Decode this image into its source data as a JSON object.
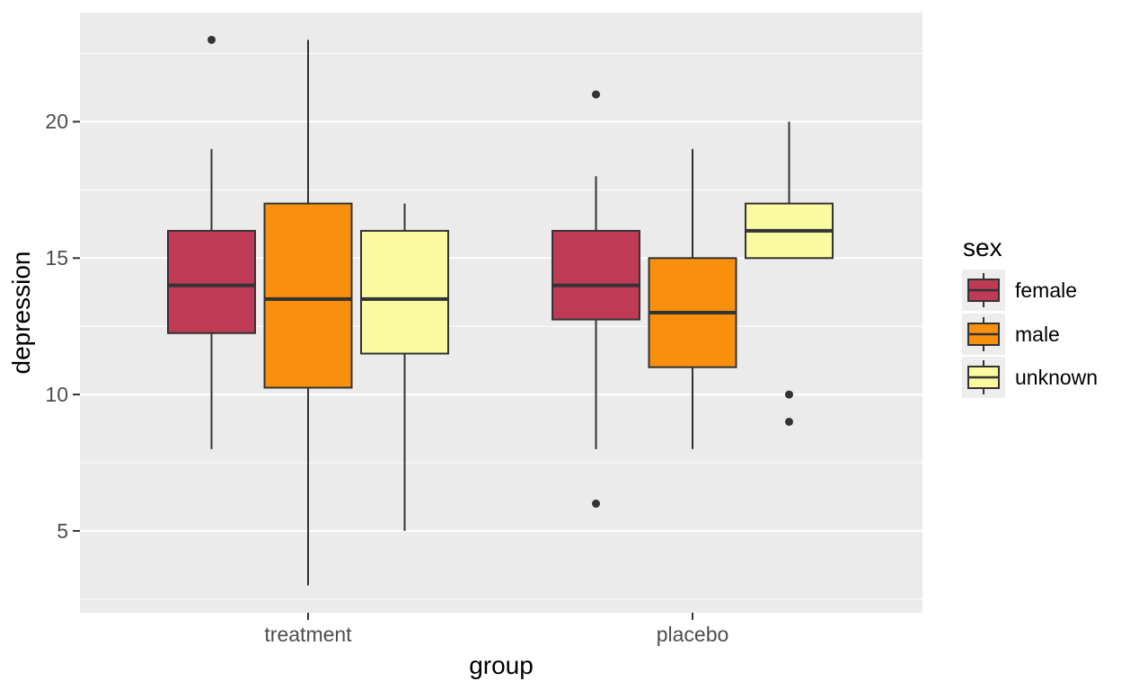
{
  "chart_data": {
    "type": "boxplot",
    "title": "",
    "xlabel": "group",
    "ylabel": "depression",
    "categories": [
      "treatment",
      "placebo"
    ],
    "yticks": [
      5,
      10,
      15,
      20
    ],
    "yticks_minor": [
      2.5,
      7.5,
      12.5,
      17.5,
      22.5
    ],
    "ylim": [
      2,
      24
    ],
    "grid": "white major and minor horizontal gridlines on grey panel",
    "legend": {
      "title": "sex",
      "position": "right",
      "entries": [
        {
          "label": "female",
          "color": "#BE3A55"
        },
        {
          "label": "male",
          "color": "#F8900D"
        },
        {
          "label": "unknown",
          "color": "#FAFAA0"
        }
      ]
    },
    "series": [
      {
        "group": "treatment",
        "sex": "female",
        "whisker_low": 8,
        "q1": 12.25,
        "median": 14,
        "q3": 16,
        "whisker_high": 19,
        "outliers": [
          23
        ]
      },
      {
        "group": "treatment",
        "sex": "male",
        "whisker_low": 3,
        "q1": 10.25,
        "median": 13.5,
        "q3": 17,
        "whisker_high": 23,
        "outliers": []
      },
      {
        "group": "treatment",
        "sex": "unknown",
        "whisker_low": 5,
        "q1": 11.5,
        "median": 13.5,
        "q3": 16,
        "whisker_high": 17,
        "outliers": []
      },
      {
        "group": "placebo",
        "sex": "female",
        "whisker_low": 8,
        "q1": 12.75,
        "median": 14,
        "q3": 16,
        "whisker_high": 18,
        "outliers": [
          21,
          6
        ]
      },
      {
        "group": "placebo",
        "sex": "male",
        "whisker_low": 8,
        "q1": 11,
        "median": 13,
        "q3": 15,
        "whisker_high": 19,
        "outliers": []
      },
      {
        "group": "placebo",
        "sex": "unknown",
        "whisker_low": 15,
        "q1": 15,
        "median": 16,
        "q3": 17,
        "whisker_high": 20,
        "outliers": [
          10,
          9
        ]
      }
    ],
    "colors": {
      "panel_background": "#EBEBEB",
      "gridline": "#FFFFFF",
      "box_border": "#333333",
      "median_line": "#333333",
      "outlier": "#333333",
      "tick_label": "#4D4D4D",
      "axis_title": "#000000",
      "legend_key_background": "#EDEDED"
    }
  }
}
